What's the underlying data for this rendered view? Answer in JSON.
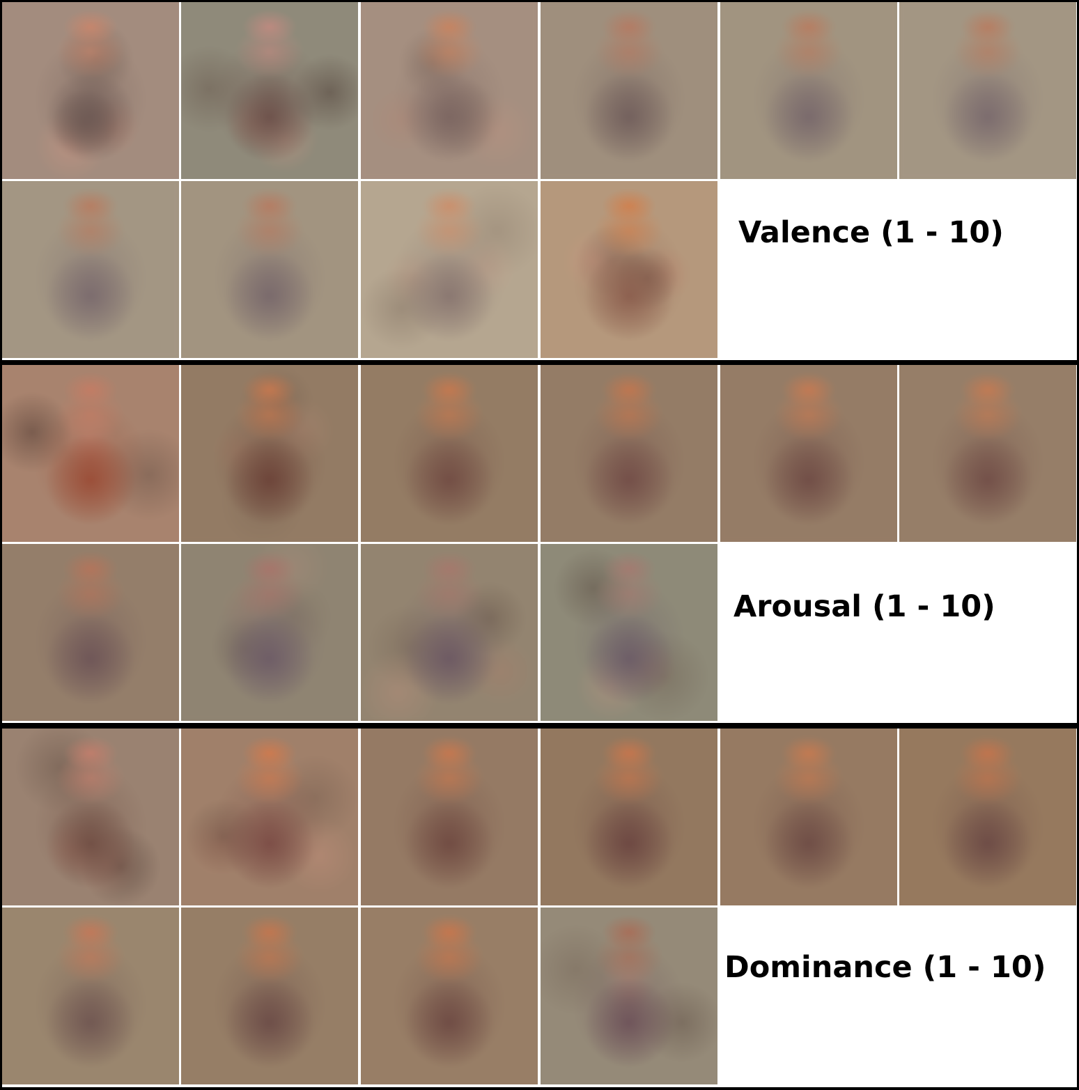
{
  "figure": {
    "rows": [
      {
        "label": "Valence (1 - 10)",
        "tiles": [
          {
            "bg": "#a38c7e",
            "head": "#c8866c",
            "body": "#6e5a55",
            "noise": 0.85
          },
          {
            "bg": "#8f8a7a",
            "head": "#bf8a80",
            "body": "#6a4e48",
            "noise": 0.8
          },
          {
            "bg": "#a58f80",
            "head": "#c8835f",
            "body": "#7a6460",
            "noise": 0.45
          },
          {
            "bg": "#9f8f7d",
            "head": "#b57a62",
            "body": "#6f5c5a",
            "noise": 0.25
          },
          {
            "bg": "#a19480",
            "head": "#b87c60",
            "body": "#76666a",
            "noise": 0.12
          },
          {
            "bg": "#a39683",
            "head": "#b87c60",
            "body": "#78686c",
            "noise": 0.12
          },
          {
            "bg": "#a39683",
            "head": "#b87c60",
            "body": "#78686c",
            "noise": 0.1
          },
          {
            "bg": "#a29480",
            "head": "#b67b61",
            "body": "#76666a",
            "noise": 0.12
          },
          {
            "bg": "#b5a690",
            "head": "#cc8e6a",
            "body": "#86736e",
            "noise": 0.4
          },
          {
            "bg": "#b5987c",
            "head": "#d0804e",
            "body": "#8a5c4c",
            "noise": 0.75
          }
        ]
      },
      {
        "label": "Arousal (1 - 10)",
        "tiles": [
          {
            "bg": "#a8836e",
            "head": "#c47c64",
            "body": "#9a4a34",
            "noise": 0.85
          },
          {
            "bg": "#937b64",
            "head": "#c8784e",
            "body": "#6a4036",
            "noise": 0.35
          },
          {
            "bg": "#947c64",
            "head": "#c6784e",
            "body": "#704a42",
            "noise": 0.2
          },
          {
            "bg": "#947c66",
            "head": "#c2764e",
            "body": "#714b46",
            "noise": 0.15
          },
          {
            "bg": "#957c66",
            "head": "#c67a52",
            "body": "#6e4a44",
            "noise": 0.2
          },
          {
            "bg": "#967e68",
            "head": "#c47a52",
            "body": "#704c46",
            "noise": 0.2
          },
          {
            "bg": "#947e6a",
            "head": "#b5745a",
            "body": "#6c5356",
            "noise": 0.15
          },
          {
            "bg": "#8f8472",
            "head": "#a8746a",
            "body": "#6c5a66",
            "noise": 0.35
          },
          {
            "bg": "#938470",
            "head": "#a6786c",
            "body": "#6a5662",
            "noise": 0.5
          },
          {
            "bg": "#8e8a78",
            "head": "#a47a70",
            "body": "#6a5a66",
            "noise": 0.6
          }
        ]
      },
      {
        "label": "Dominance (1 - 10)",
        "tiles": [
          {
            "bg": "#9a8271",
            "head": "#c27e6c",
            "body": "#6e4c42",
            "noise": 0.85
          },
          {
            "bg": "#a0806a",
            "head": "#cf7a4e",
            "body": "#7a4a44",
            "noise": 0.6
          },
          {
            "bg": "#957a64",
            "head": "#c8784e",
            "body": "#6e4840",
            "noise": 0.3
          },
          {
            "bg": "#93785f",
            "head": "#c8764c",
            "body": "#6a4440",
            "noise": 0.3
          },
          {
            "bg": "#967a62",
            "head": "#c67a50",
            "body": "#6c4a44",
            "noise": 0.2
          },
          {
            "bg": "#96795e",
            "head": "#c4744c",
            "body": "#6a4844",
            "noise": 0.2
          },
          {
            "bg": "#9a866e",
            "head": "#c47858",
            "body": "#6e5450",
            "noise": 0.12
          },
          {
            "bg": "#967e66",
            "head": "#c4764e",
            "body": "#6a4a46",
            "noise": 0.2
          },
          {
            "bg": "#987e66",
            "head": "#c8764c",
            "body": "#6c4842",
            "noise": 0.2
          },
          {
            "bg": "#958a78",
            "head": "#a86e58",
            "body": "#6c5058",
            "noise": 0.55
          }
        ]
      }
    ]
  }
}
